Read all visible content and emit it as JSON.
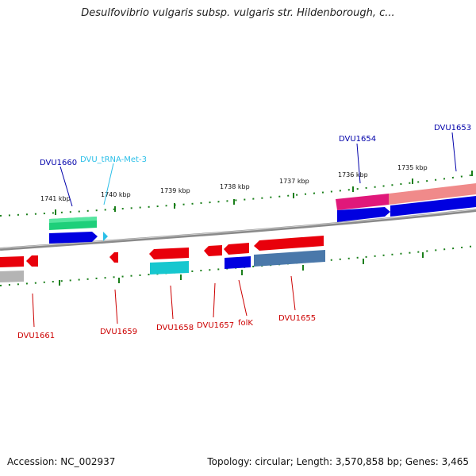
{
  "title": "Desulfovibrio vulgaris subsp. vulgaris str. Hildenborough, c...",
  "footer": {
    "accession": "Accession: NC_002937",
    "summary": "Topology: circular; Length: 3,570,858 bp; Genes: 3,465"
  },
  "ticks": [
    "1741 kbp",
    "1740 kbp",
    "1739 kbp",
    "1738 kbp",
    "1737 kbp",
    "1736 kbp",
    "1735 kbp"
  ],
  "labels_top": {
    "dvu1660": "DVU1660",
    "trna": "DVU_tRNA-Met-3",
    "dvu1654": "DVU1654",
    "dvu1653": "DVU1653"
  },
  "labels_bottom": {
    "dvu1661": "DVU1661",
    "dvu1659": "DVU1659",
    "dvu1658": "DVU1658",
    "dvu1657": "DVU1657",
    "folk": "folK",
    "dvu1655": "DVU1655"
  },
  "colors": {
    "backbone": "#7a7a7a",
    "tick_green": "#1a7f1a",
    "cds_red": "#e8000b",
    "cds_blue": "#0000e0",
    "trna_cyan": "#2bbfe8",
    "green_feature": "#1ecf7a",
    "pink_feature": "#e0187a",
    "steel_feature": "#4a78aa",
    "label_blue": "#0000aa",
    "label_red": "#cc0000"
  }
}
